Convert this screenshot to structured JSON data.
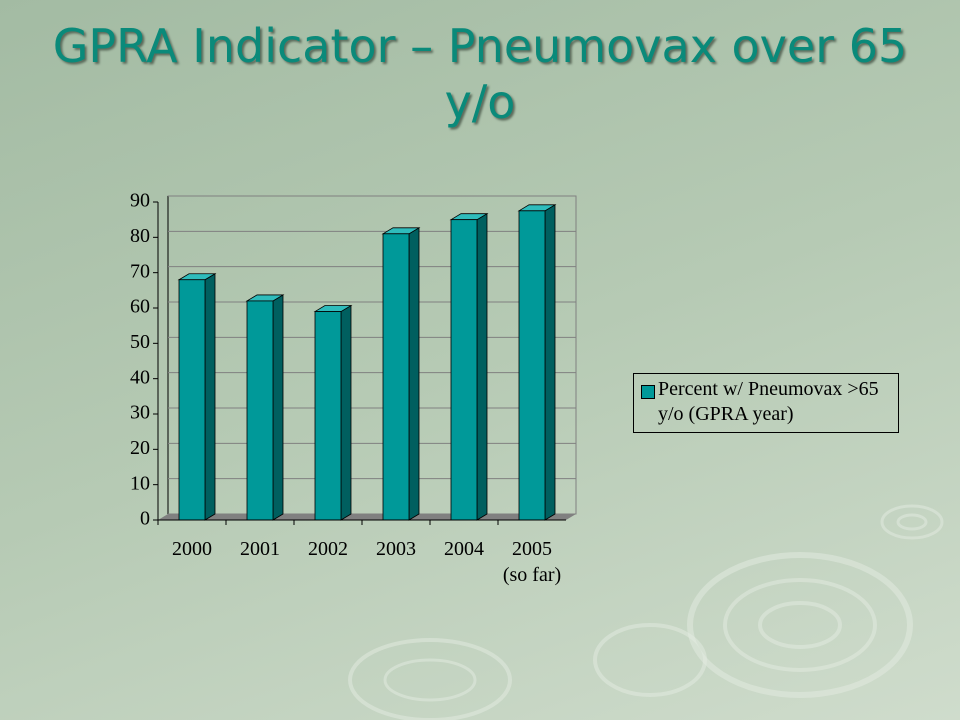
{
  "chart_data": {
    "type": "bar",
    "title": "GPRA Indicator – Pneumovax over 65 y/o",
    "categories": [
      "2000",
      "2001",
      "2002",
      "2003",
      "2004",
      "2005 (so far)"
    ],
    "series": [
      {
        "name": "Percent w/ Pneumovax >65 y/o (GPRA year)",
        "color": "#009999",
        "values": [
          68,
          62,
          59,
          81,
          85,
          87.5
        ]
      }
    ],
    "ylim": [
      0,
      90
    ],
    "yticks": [
      0,
      10,
      20,
      30,
      40,
      50,
      60,
      70,
      80,
      90
    ],
    "grid": true,
    "legend": "right"
  }
}
